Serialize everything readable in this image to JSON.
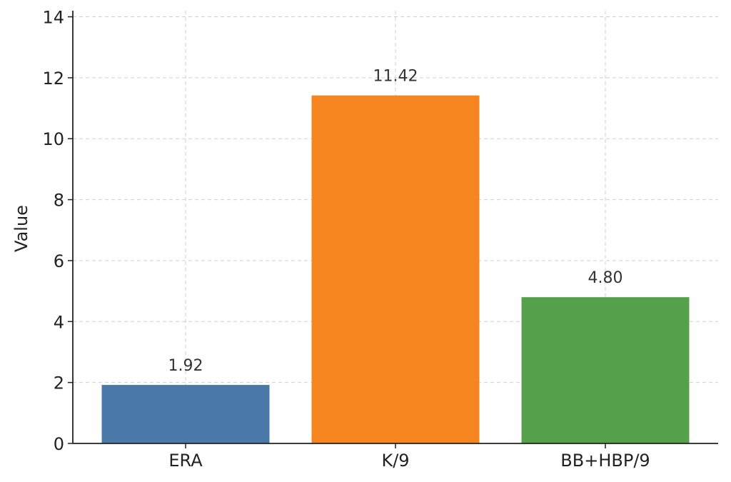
{
  "chart_data": {
    "type": "bar",
    "categories": [
      "ERA",
      "K/9",
      "BB+HBP/9"
    ],
    "values": [
      1.92,
      11.42,
      4.8
    ],
    "value_labels": [
      "1.92",
      "11.42",
      "4.80"
    ],
    "colors": [
      "#4a78a8",
      "#f5861f",
      "#55a14b"
    ],
    "title": "",
    "xlabel": "",
    "ylabel": "Value",
    "ylim": [
      0,
      14.2
    ],
    "yticks": [
      0,
      2,
      4,
      6,
      8,
      10,
      12,
      14
    ],
    "ytick_labels": [
      "0",
      "2",
      "4",
      "6",
      "8",
      "10",
      "12",
      "14"
    ],
    "grid": true,
    "axis_color": "#222222",
    "grid_color": "#cfcfcf"
  }
}
